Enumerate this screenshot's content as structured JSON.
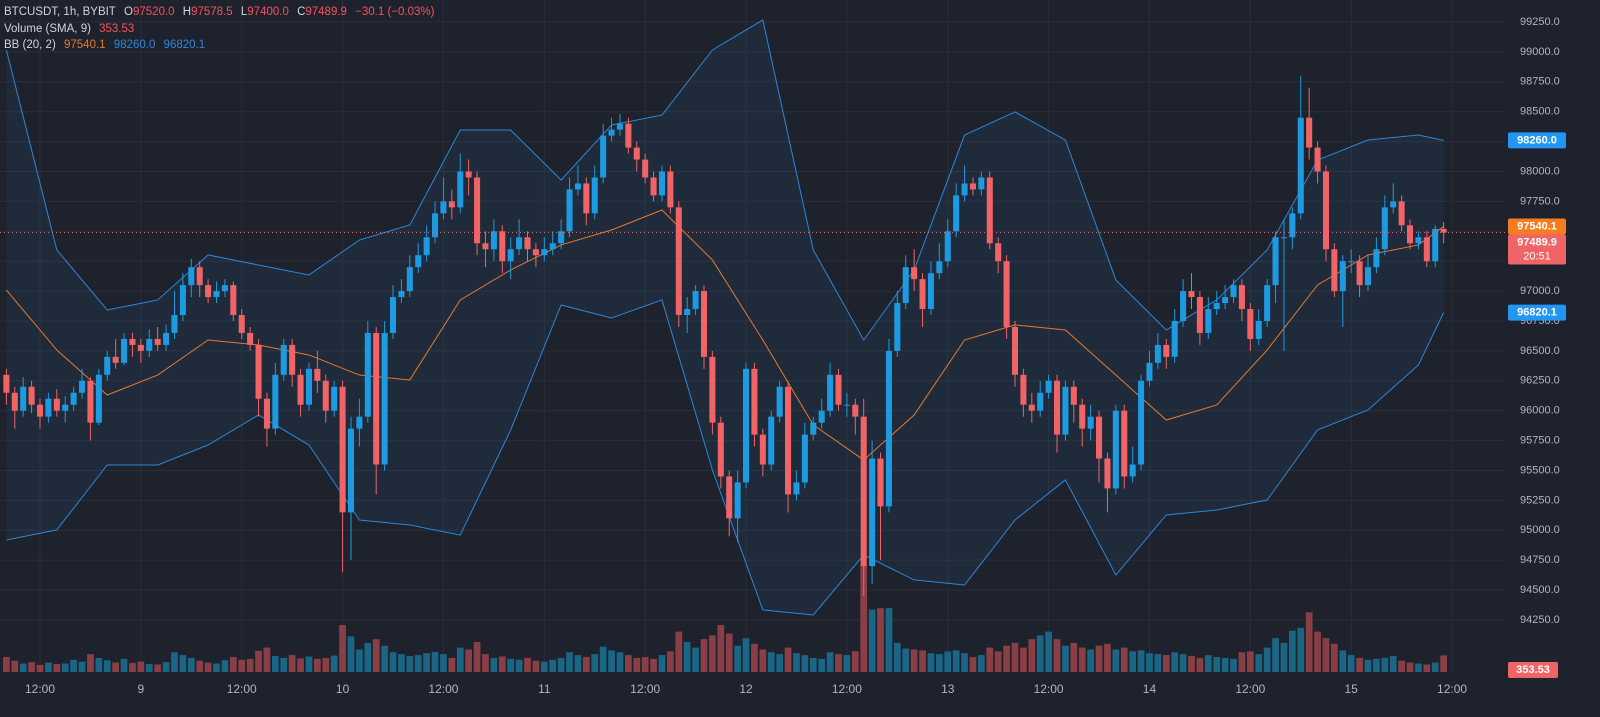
{
  "chart_data": {
    "type": "candlestick",
    "title": "BTCUSDT, 1h, BYBIT",
    "ohlc_readout": [
      {
        "key": "O",
        "value": "97520.0"
      },
      {
        "key": "H",
        "value": "97578.5"
      },
      {
        "key": "L",
        "value": "97400.0"
      },
      {
        "key": "C",
        "value": "97489.9"
      }
    ],
    "change": "−30.1 (−0.03%)",
    "volume_readout": {
      "label": "Volume (SMA, 9)",
      "value": "353.53"
    },
    "bb_readout": {
      "label": "BB (20, 2)",
      "values": [
        "97540.1",
        "98260.0",
        "96820.1"
      ]
    },
    "up_color": "#1e9be0",
    "down_color": "#f06467",
    "volume_up_color": "#1b6585",
    "volume_down_color": "#8a3f47",
    "open": [
      96300,
      96150,
      96000,
      96200,
      96050,
      95950,
      96100,
      96000,
      96050,
      96150,
      96250,
      95900,
      96300,
      96450,
      96400,
      96600,
      96550,
      96500,
      96600,
      96550,
      96650,
      96800,
      97050,
      97200,
      97050,
      96950,
      97000,
      97050,
      96800,
      96650,
      96550,
      96100,
      95850,
      96300,
      96550,
      96300,
      96050,
      96350,
      96250,
      96000,
      96200,
      95150,
      95850,
      95950,
      96650,
      95550,
      96650,
      96950,
      97000,
      97200,
      97300,
      97450,
      97650,
      97750,
      97700,
      98000,
      97950,
      97400,
      97350,
      97500,
      97250,
      97350,
      97450,
      97350,
      97300,
      97350,
      97400,
      97500,
      97850,
      97900,
      97650,
      97950,
      98300,
      98350,
      98400,
      98200,
      98100,
      97950,
      97800,
      98000,
      97700,
      96800,
      96850,
      97000,
      96450,
      95900,
      95450,
      95100,
      95400,
      96350,
      95800,
      95550,
      95950,
      96200,
      95300,
      95400,
      95800,
      95900,
      96000,
      96300,
      96050,
      96050,
      95950,
      94700,
      95600,
      95200,
      96500,
      96900,
      97200,
      97100,
      96850,
      97150,
      97250,
      97500,
      97800,
      97900,
      97850,
      97950,
      97400,
      97250,
      96700,
      96300,
      96050,
      96000,
      96150,
      96250,
      95800,
      96200,
      96050,
      95850,
      95950,
      95600,
      95350,
      96000,
      95450,
      95550,
      96250,
      96400,
      96550,
      96450,
      96750,
      97000,
      96950,
      96650,
      96850,
      96900,
      96950,
      97050,
      96850,
      96600,
      96750,
      97050,
      97450,
      97450,
      97650,
      98450,
      98200,
      98000,
      97350,
      97000,
      97250,
      97250,
      97050,
      97200,
      97350,
      97700,
      97750,
      97550,
      97400,
      97450,
      97250,
      97520
    ],
    "high": [
      96350,
      96200,
      96280,
      96250,
      96100,
      96150,
      96180,
      96120,
      96200,
      96350,
      96280,
      96350,
      96500,
      96600,
      96650,
      96650,
      96600,
      96680,
      96700,
      96720,
      97000,
      97150,
      97270,
      97250,
      97100,
      97080,
      97100,
      97080,
      96850,
      96700,
      96600,
      96150,
      96400,
      96600,
      96600,
      96350,
      96400,
      96500,
      96300,
      96250,
      96250,
      95950,
      96100,
      96750,
      96700,
      96750,
      97050,
      97100,
      97300,
      97400,
      97550,
      97750,
      97950,
      97850,
      98150,
      98100,
      98000,
      97500,
      97600,
      97550,
      97450,
      97600,
      97500,
      97400,
      97450,
      97500,
      97600,
      97950,
      98050,
      97950,
      98050,
      98400,
      98450,
      98480,
      98450,
      98250,
      98150,
      98000,
      98050,
      98050,
      97750,
      96950,
      97050,
      97050,
      96500,
      95950,
      95500,
      95500,
      96400,
      96400,
      95850,
      96000,
      96250,
      96250,
      95500,
      95900,
      95950,
      96100,
      96400,
      96350,
      96150,
      96100,
      96100,
      95750,
      95650,
      96600,
      97000,
      97300,
      97350,
      97150,
      97250,
      97400,
      97600,
      97900,
      98050,
      97950,
      98000,
      98000,
      97450,
      97300,
      96750,
      96350,
      96150,
      96250,
      96300,
      96300,
      96250,
      96250,
      96100,
      96050,
      96000,
      95650,
      96050,
      96050,
      95700,
      96300,
      96500,
      96650,
      96600,
      96850,
      97100,
      97150,
      97000,
      96950,
      97000,
      97050,
      97100,
      97100,
      96900,
      96850,
      97100,
      97500,
      97600,
      97700,
      98800,
      98700,
      98250,
      98050,
      97400,
      97300,
      97350,
      97300,
      97300,
      97450,
      97800,
      97900,
      97800,
      97600,
      97500,
      97500,
      97550,
      97578.5
    ],
    "low": [
      96050,
      95850,
      95950,
      95980,
      95850,
      95900,
      95950,
      95900,
      96000,
      96100,
      95750,
      95880,
      96250,
      96350,
      96380,
      96450,
      96400,
      96450,
      96500,
      96500,
      96600,
      96750,
      96950,
      96950,
      96900,
      96900,
      96950,
      96750,
      96600,
      96500,
      95950,
      95700,
      95800,
      96250,
      96200,
      95950,
      96000,
      96150,
      95900,
      95950,
      94650,
      94750,
      95700,
      95900,
      95300,
      95500,
      96600,
      96900,
      96950,
      97150,
      97250,
      97400,
      97600,
      97600,
      97650,
      97800,
      97300,
      97200,
      97250,
      97150,
      97100,
      97300,
      97250,
      97200,
      97250,
      97300,
      97350,
      97450,
      97800,
      97550,
      97600,
      97900,
      98250,
      98300,
      98150,
      98000,
      97900,
      97750,
      97750,
      97650,
      96700,
      96650,
      96800,
      96350,
      95800,
      95350,
      94950,
      94900,
      95350,
      95700,
      95450,
      95500,
      95900,
      95150,
      95250,
      95350,
      95750,
      95850,
      95950,
      96000,
      95950,
      95800,
      94450,
      94550,
      94750,
      95150,
      96450,
      96850,
      97000,
      96700,
      96800,
      97100,
      97200,
      97450,
      97750,
      97800,
      97800,
      97350,
      97150,
      96600,
      96200,
      95950,
      95900,
      95950,
      96100,
      95650,
      95750,
      95900,
      95700,
      95750,
      95400,
      95150,
      95300,
      95350,
      95400,
      95500,
      96200,
      96350,
      96350,
      96400,
      96700,
      96850,
      96550,
      96600,
      96800,
      96850,
      96900,
      96750,
      96500,
      96550,
      96700,
      96900,
      96500,
      97350,
      97600,
      98100,
      97900,
      97250,
      96950,
      96700,
      97150,
      96950,
      97000,
      97150,
      97300,
      97650,
      97500,
      97350,
      97350,
      97200,
      97200,
      97400
    ],
    "close": [
      96150,
      96000,
      96200,
      96050,
      95950,
      96100,
      96000,
      96050,
      96150,
      96250,
      95900,
      96300,
      96450,
      96400,
      96600,
      96550,
      96500,
      96600,
      96550,
      96650,
      96800,
      97050,
      97200,
      97050,
      96950,
      97000,
      97050,
      96800,
      96650,
      96550,
      96100,
      95850,
      96300,
      96550,
      96300,
      96050,
      96350,
      96250,
      96000,
      96200,
      95150,
      95850,
      95950,
      96650,
      95550,
      96650,
      96950,
      97000,
      97200,
      97300,
      97450,
      97650,
      97750,
      97700,
      98000,
      97950,
      97400,
      97350,
      97500,
      97250,
      97350,
      97450,
      97350,
      97300,
      97350,
      97400,
      97500,
      97850,
      97900,
      97650,
      97950,
      98300,
      98350,
      98400,
      98200,
      98100,
      97950,
      97800,
      98000,
      97700,
      96800,
      96850,
      97000,
      96450,
      95900,
      95450,
      95100,
      95400,
      96350,
      95800,
      95550,
      95950,
      96200,
      95300,
      95400,
      95800,
      95900,
      96000,
      96300,
      96050,
      96050,
      95950,
      94700,
      95600,
      95200,
      96500,
      96900,
      97200,
      97100,
      96850,
      97150,
      97250,
      97500,
      97800,
      97900,
      97850,
      97950,
      97400,
      97250,
      96700,
      96300,
      96050,
      96000,
      96150,
      96250,
      95800,
      96200,
      96050,
      95850,
      95950,
      95600,
      95350,
      96000,
      95450,
      95550,
      96250,
      96400,
      96550,
      96450,
      96750,
      97000,
      96950,
      96650,
      96850,
      96900,
      96950,
      97050,
      96850,
      96600,
      96750,
      97050,
      97450,
      97450,
      97650,
      98450,
      98200,
      98000,
      97350,
      97000,
      97250,
      97250,
      97050,
      97200,
      97350,
      97700,
      97750,
      97550,
      97400,
      97450,
      97250,
      97520,
      97489.9
    ],
    "volume": [
      320,
      240,
      180,
      210,
      150,
      200,
      170,
      180,
      260,
      220,
      380,
      300,
      250,
      200,
      280,
      190,
      220,
      170,
      160,
      210,
      420,
      360,
      300,
      240,
      200,
      180,
      250,
      320,
      260,
      280,
      450,
      520,
      340,
      300,
      360,
      290,
      330,
      280,
      300,
      350,
      1000,
      760,
      480,
      620,
      700,
      560,
      420,
      380,
      340,
      360,
      400,
      430,
      380,
      300,
      520,
      480,
      640,
      380,
      300,
      330,
      280,
      260,
      300,
      240,
      220,
      260,
      300,
      420,
      360,
      320,
      380,
      540,
      460,
      420,
      360,
      300,
      320,
      280,
      360,
      440,
      860,
      640,
      520,
      700,
      780,
      1000,
      820,
      560,
      720,
      600,
      480,
      420,
      380,
      520,
      400,
      360,
      300,
      280,
      420,
      380,
      360,
      440,
      2300,
      1330,
      1360,
      1360,
      620,
      500,
      480,
      460,
      400,
      380,
      440,
      460,
      400,
      320,
      360,
      520,
      440,
      560,
      620,
      520,
      700,
      780,
      860,
      700,
      560,
      620,
      520,
      480,
      560,
      600,
      480,
      520,
      440,
      460,
      400,
      380,
      360,
      420,
      380,
      340,
      300,
      360,
      320,
      300,
      280,
      420,
      440,
      380,
      520,
      720,
      620,
      880,
      940,
      1270,
      860,
      720,
      600,
      460,
      360,
      300,
      260,
      280,
      300,
      340,
      240,
      200,
      180,
      160,
      200,
      353.53
    ],
    "bollinger": {
      "basis_color": "#e8792e",
      "band_color": "#2e86d6",
      "x": [
        0,
        6,
        12,
        18,
        24,
        30,
        36,
        42,
        48,
        54,
        60,
        66,
        72,
        78,
        84,
        90,
        96,
        102,
        108,
        114,
        120,
        126,
        132,
        138,
        144,
        150,
        156,
        162,
        168,
        171
      ],
      "basis": [
        97009,
        96507,
        96131,
        96298,
        96591,
        96549,
        96466,
        96298,
        96257,
        96926,
        97177,
        97386,
        97511,
        97678,
        97260,
        96591,
        95881,
        95588,
        95964,
        96591,
        96717,
        96675,
        96298,
        95922,
        96048,
        96507,
        97051,
        97302,
        97386,
        97540.1
      ],
      "upper": [
        99016,
        97344,
        96842,
        96926,
        97302,
        97218,
        97135,
        97427,
        97553,
        98347,
        98347,
        97929,
        98389,
        98472,
        99016,
        99267,
        97344,
        96591,
        97177,
        98305,
        98498,
        98263,
        97093,
        96675,
        96926,
        97344,
        98096,
        98263,
        98305,
        98260.0
      ],
      "lower": [
        94919,
        95003,
        95546,
        95546,
        95713,
        95964,
        95713,
        95086,
        95044,
        94960,
        95839,
        96884,
        96775,
        96926,
        95504,
        94334,
        94292,
        94794,
        94585,
        94543,
        95086,
        95421,
        94626,
        95128,
        95170,
        95253,
        95839,
        96006,
        96382,
        96820.1
      ]
    },
    "xlim": [
      -0.76,
      178.3
    ],
    "xticks": [
      {
        "value": 4,
        "label": "12:00"
      },
      {
        "value": 16,
        "label": "9"
      },
      {
        "value": 28,
        "label": "12:00"
      },
      {
        "value": 40,
        "label": "10"
      },
      {
        "value": 52,
        "label": "12:00"
      },
      {
        "value": 64,
        "label": "11"
      },
      {
        "value": 76,
        "label": "12:00"
      },
      {
        "value": 88,
        "label": "12"
      },
      {
        "value": 100,
        "label": "12:00"
      },
      {
        "value": 112,
        "label": "13"
      },
      {
        "value": 124,
        "label": "12:00"
      },
      {
        "value": 136,
        "label": "14"
      },
      {
        "value": 148,
        "label": "12:00"
      },
      {
        "value": 160,
        "label": "15"
      },
      {
        "value": 172,
        "label": "12:00"
      }
    ],
    "ylim": [
      93815,
      99434
    ],
    "yticks": [
      {
        "value": 94250,
        "label": "94250.0"
      },
      {
        "value": 94500,
        "label": "94500.0"
      },
      {
        "value": 94750,
        "label": "94750.0"
      },
      {
        "value": 95000,
        "label": "95000.0"
      },
      {
        "value": 95250,
        "label": "95250.0"
      },
      {
        "value": 95500,
        "label": "95500.0"
      },
      {
        "value": 95750,
        "label": "95750.0"
      },
      {
        "value": 96000,
        "label": "96000.0"
      },
      {
        "value": 96250,
        "label": "96250.0"
      },
      {
        "value": 96500,
        "label": "96500.0"
      },
      {
        "value": 96750,
        "label": "96750.0"
      },
      {
        "value": 97000,
        "label": "97000.0"
      },
      {
        "value": 97250,
        "label": "97250.0"
      },
      {
        "value": 97500,
        "label": "97500.0"
      },
      {
        "value": 97750,
        "label": "97750.0"
      },
      {
        "value": 98000,
        "label": "98000.0"
      },
      {
        "value": 98250,
        "label": "98250.0"
      },
      {
        "value": 98500,
        "label": "98500.0"
      },
      {
        "value": 98750,
        "label": "98750.0"
      },
      {
        "value": 99000,
        "label": "99000.0"
      },
      {
        "value": 99250,
        "label": "99250.0"
      }
    ],
    "grid": true,
    "price_labels": [
      {
        "value": 98260.0,
        "label": "98260.0",
        "color": "#2196f3"
      },
      {
        "value": 97540.1,
        "label": "97540.1",
        "color": "#f57c1f"
      },
      {
        "value": 97489.9,
        "label": "97489.9",
        "color": "#f06467",
        "countdown": "20:51"
      },
      {
        "value": 96820.1,
        "label": "96820.1",
        "color": "#2196f3"
      }
    ],
    "volume_label": {
      "value": 353.53,
      "label": "353.53",
      "color": "#f06467"
    }
  }
}
